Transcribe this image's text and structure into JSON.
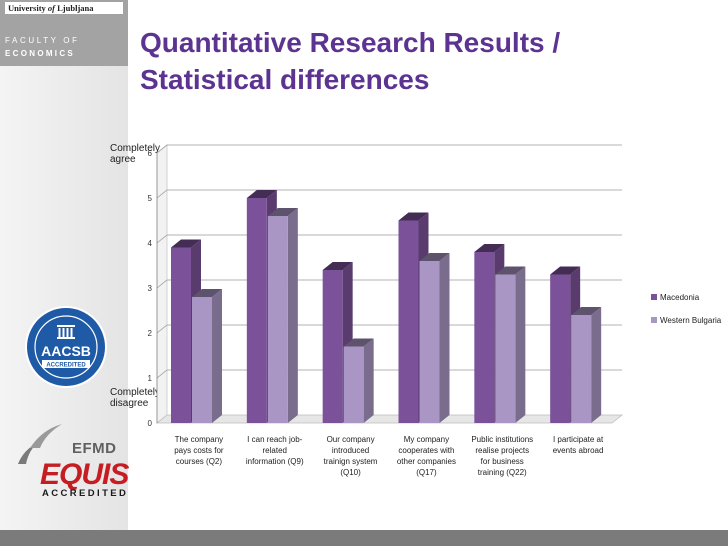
{
  "branding": {
    "university_prefix": "University",
    "university_of": "of",
    "university_city": "Ljubljana",
    "faculty_line1": "FACULTY OF",
    "faculty_line2": "ECONOMICS",
    "aacsb_text": "AACSB",
    "aacsb_sub": "ACCREDITED",
    "efmd_text": "EFMD",
    "equis_text": "EQUIS",
    "equis_sub": "ACCREDITED"
  },
  "slide": {
    "title_line1": "Quantitative Research Results /",
    "title_line2": "Statistical differences"
  },
  "scale_labels": {
    "top_line1": "Completely",
    "top_line2": "agree",
    "bottom_line1": "Completely",
    "bottom_line2": "disagree"
  },
  "colors": {
    "title": "#5c3390",
    "macedonia": "#7b5299",
    "western_bulgaria": "#a996c4"
  },
  "chart_data": {
    "type": "bar",
    "style": "3d-clustered",
    "categories": [
      [
        "The company",
        "pays costs for",
        "courses (Q2)"
      ],
      [
        "I can reach job-",
        "related",
        "information (Q9)"
      ],
      [
        "Our company",
        "introduced",
        "trainign system",
        "(Q10)"
      ],
      [
        "My company",
        "cooperates with",
        "other companies",
        "(Q17)"
      ],
      [
        "Public institutions",
        "realise projects",
        "for business",
        "training (Q22)"
      ],
      [
        "I participate at",
        "events abroad"
      ]
    ],
    "series": [
      {
        "name": "Macedonia",
        "values": [
          3.9,
          5.0,
          3.4,
          4.5,
          3.8,
          3.3
        ]
      },
      {
        "name": "Western Bulgaria",
        "values": [
          2.8,
          4.6,
          1.7,
          3.6,
          3.3,
          2.4
        ]
      }
    ],
    "ylim": [
      0,
      6
    ],
    "yticks": [
      0,
      1,
      2,
      3,
      4,
      5,
      6
    ],
    "grid": true,
    "legend_position": "right"
  }
}
